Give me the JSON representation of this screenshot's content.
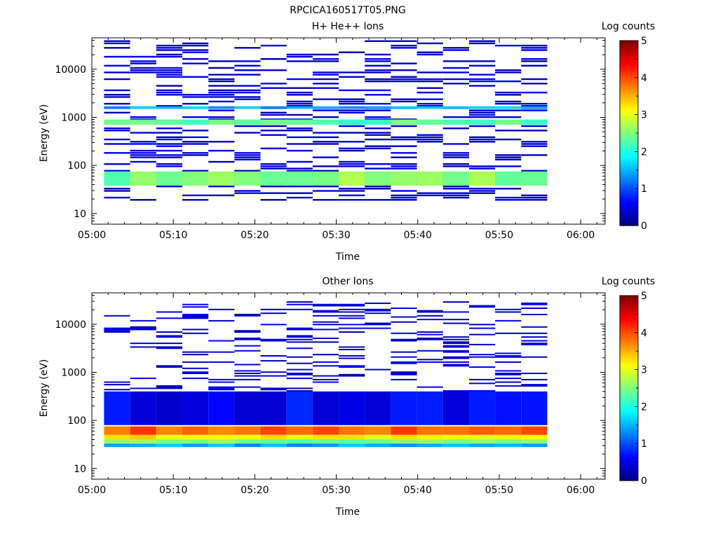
{
  "figure_title": "RPCICA160517T05.PNG",
  "colors": {
    "colormap": [
      "#00007f",
      "#0000ff",
      "#007fff",
      "#00ffff",
      "#7fff7f",
      "#ffff00",
      "#ff7f00",
      "#ff0000",
      "#7f0000"
    ]
  },
  "chart_data": [
    {
      "type": "heatmap",
      "title": "H+ He++ Ions",
      "xlabel": "Time",
      "ylabel": "Energy (eV)",
      "xticks": [
        "05:00",
        "05:10",
        "05:20",
        "05:30",
        "05:40",
        "05:50",
        "06:00"
      ],
      "xlim_minutes": [
        0,
        63
      ],
      "yticks": [
        "10",
        "100",
        "1000",
        "10000"
      ],
      "yscale": "log",
      "ylim": [
        6,
        45000
      ],
      "colorbar": {
        "label": "Log counts",
        "ticks": [
          "0",
          "1",
          "2",
          "3",
          "4",
          "5"
        ],
        "range": [
          0,
          5
        ]
      },
      "time_bins_start_min": [
        1.5,
        4.7,
        7.9,
        11.1,
        14.3,
        17.5,
        20.7,
        23.9,
        27.1,
        30.3,
        33.5,
        36.7,
        39.9,
        43.1,
        46.3,
        49.5,
        52.7
      ],
      "bands": [
        {
          "e_lo": 38,
          "e_hi": 75,
          "value": 2.5
        },
        {
          "e_lo": 700,
          "e_hi": 900,
          "value": 2.3
        },
        {
          "e_lo": 1500,
          "e_hi": 1700,
          "value": 1.5
        }
      ],
      "sparse_energy_range": [
        18,
        40000
      ],
      "sparse_density": 0.32,
      "sparse_value": 0.2
    },
    {
      "type": "heatmap",
      "title": "Other Ions",
      "xlabel": "Time",
      "ylabel": "Energy (eV)",
      "xticks": [
        "05:00",
        "05:10",
        "05:20",
        "05:30",
        "05:40",
        "05:50",
        "06:00"
      ],
      "xlim_minutes": [
        0,
        63
      ],
      "yticks": [
        "10",
        "100",
        "1000",
        "10000"
      ],
      "yscale": "log",
      "ylim": [
        6,
        45000
      ],
      "colorbar": {
        "label": "Log counts",
        "ticks": [
          "0",
          "1",
          "2",
          "3",
          "4",
          "5"
        ],
        "range": [
          0,
          5
        ]
      },
      "time_bins_start_min": [
        1.5,
        4.7,
        7.9,
        11.1,
        14.3,
        17.5,
        20.7,
        23.9,
        27.1,
        30.3,
        33.5,
        36.7,
        39.9,
        43.1,
        46.3,
        49.5,
        52.7
      ],
      "bands": [
        {
          "e_lo": 50,
          "e_hi": 75,
          "value": 3.9
        },
        {
          "e_lo": 40,
          "e_hi": 50,
          "value": 3.2
        },
        {
          "e_lo": 33,
          "e_hi": 40,
          "value": 2.4
        },
        {
          "e_lo": 28,
          "e_hi": 33,
          "value": 1.4
        },
        {
          "e_lo": 80,
          "e_hi": 400,
          "value": 0.6
        }
      ],
      "sparse_energy_range": [
        400,
        30000
      ],
      "sparse_density": 0.18,
      "sparse_value": 0.2
    }
  ]
}
